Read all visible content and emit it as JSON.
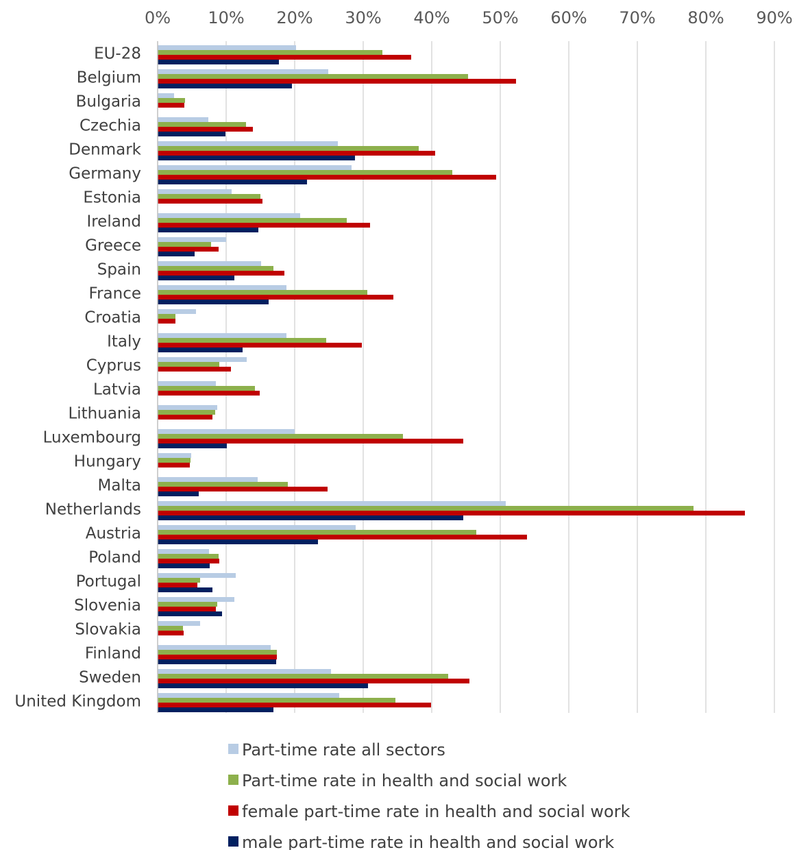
{
  "chart_data": {
    "type": "bar",
    "orientation": "horizontal",
    "title": "",
    "xlabel": "",
    "ylabel": "",
    "xlim": [
      0,
      90
    ],
    "x_ticks": [
      "0%",
      "10%",
      "20%",
      "30%",
      "40%",
      "50%",
      "60%",
      "70%",
      "80%",
      "90%"
    ],
    "grid": true,
    "legend_position": "bottom",
    "categories": [
      "EU-28",
      "Belgium",
      "Bulgaria",
      "Czechia",
      "Denmark",
      "Germany",
      "Estonia",
      "Ireland",
      "Greece",
      "Spain",
      "France",
      "Croatia",
      "Italy",
      "Cyprus",
      "Latvia",
      "Lithuania",
      "Luxembourg",
      "Hungary",
      "Malta",
      "Netherlands",
      "Austria",
      "Poland",
      "Portugal",
      "Slovenia",
      "Slovakia",
      "Finland",
      "Sweden",
      "United Kingdom"
    ],
    "series": [
      {
        "name": "Part-time rate all sectors",
        "color": "#b8cce4",
        "values": [
          20.2,
          24.9,
          2.4,
          7.4,
          26.3,
          28.3,
          10.8,
          20.8,
          10.0,
          15.1,
          18.8,
          5.6,
          18.8,
          13.0,
          8.5,
          8.7,
          20.0,
          4.9,
          14.6,
          50.8,
          28.9,
          7.5,
          11.4,
          11.2,
          6.2,
          16.5,
          25.3,
          26.5
        ]
      },
      {
        "name": "Part-time rate in health and social work",
        "color": "#8db04c",
        "values": [
          32.8,
          45.3,
          4.0,
          12.9,
          38.1,
          43.0,
          15.0,
          27.6,
          7.8,
          16.9,
          30.6,
          2.6,
          24.6,
          9.0,
          14.2,
          8.4,
          35.8,
          4.8,
          19.0,
          78.2,
          46.5,
          8.9,
          6.2,
          8.7,
          3.7,
          17.4,
          42.4,
          34.7
        ]
      },
      {
        "name": "female part-time rate in health and social work",
        "color": "#c00000",
        "values": [
          37.0,
          52.3,
          3.9,
          13.9,
          40.5,
          49.4,
          15.3,
          31.0,
          8.9,
          18.5,
          34.4,
          2.6,
          29.8,
          10.7,
          14.9,
          8.0,
          44.6,
          4.7,
          24.8,
          85.7,
          53.9,
          9.0,
          5.8,
          8.5,
          3.8,
          17.4,
          45.5,
          39.9
        ]
      },
      {
        "name": "male part-time rate in health and social work",
        "color": "#002060",
        "values": [
          17.7,
          19.6,
          0,
          9.9,
          28.8,
          21.8,
          0,
          14.7,
          5.4,
          11.2,
          16.2,
          0,
          12.4,
          0,
          0,
          0,
          10.1,
          0,
          6.0,
          44.6,
          23.4,
          7.6,
          8.0,
          9.4,
          0,
          17.3,
          30.7,
          16.9
        ]
      }
    ]
  }
}
